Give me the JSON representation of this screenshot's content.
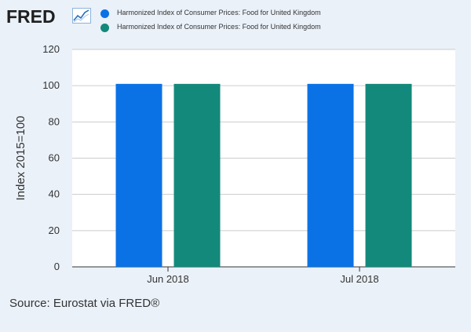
{
  "header": {
    "logo_text": "FRED",
    "logo_icon": "line-chart-icon"
  },
  "colors": {
    "background": "#eaf1f9",
    "plot_background": "#ffffff",
    "grid": "#cccccc",
    "series1": "#0b72e5",
    "series2": "#13897b"
  },
  "chart_data": {
    "type": "bar",
    "categories": [
      "Jun 2018",
      "Jul 2018"
    ],
    "series": [
      {
        "name": "Harmonized Index of Consumer Prices: Food for United Kingdom",
        "values": [
          101,
          101
        ],
        "color": "#0b72e5"
      },
      {
        "name": "Harmonized Index of Consumer Prices: Food for United Kingdom",
        "values": [
          101,
          101
        ],
        "color": "#13897b"
      }
    ],
    "ylabel": "Index 2015=100",
    "yticks": [
      0,
      20,
      40,
      60,
      80,
      100,
      120
    ],
    "ylim": [
      0,
      120
    ],
    "grid": true,
    "legend_position": "top"
  },
  "footer": {
    "source": "Source: Eurostat via FRED®"
  }
}
